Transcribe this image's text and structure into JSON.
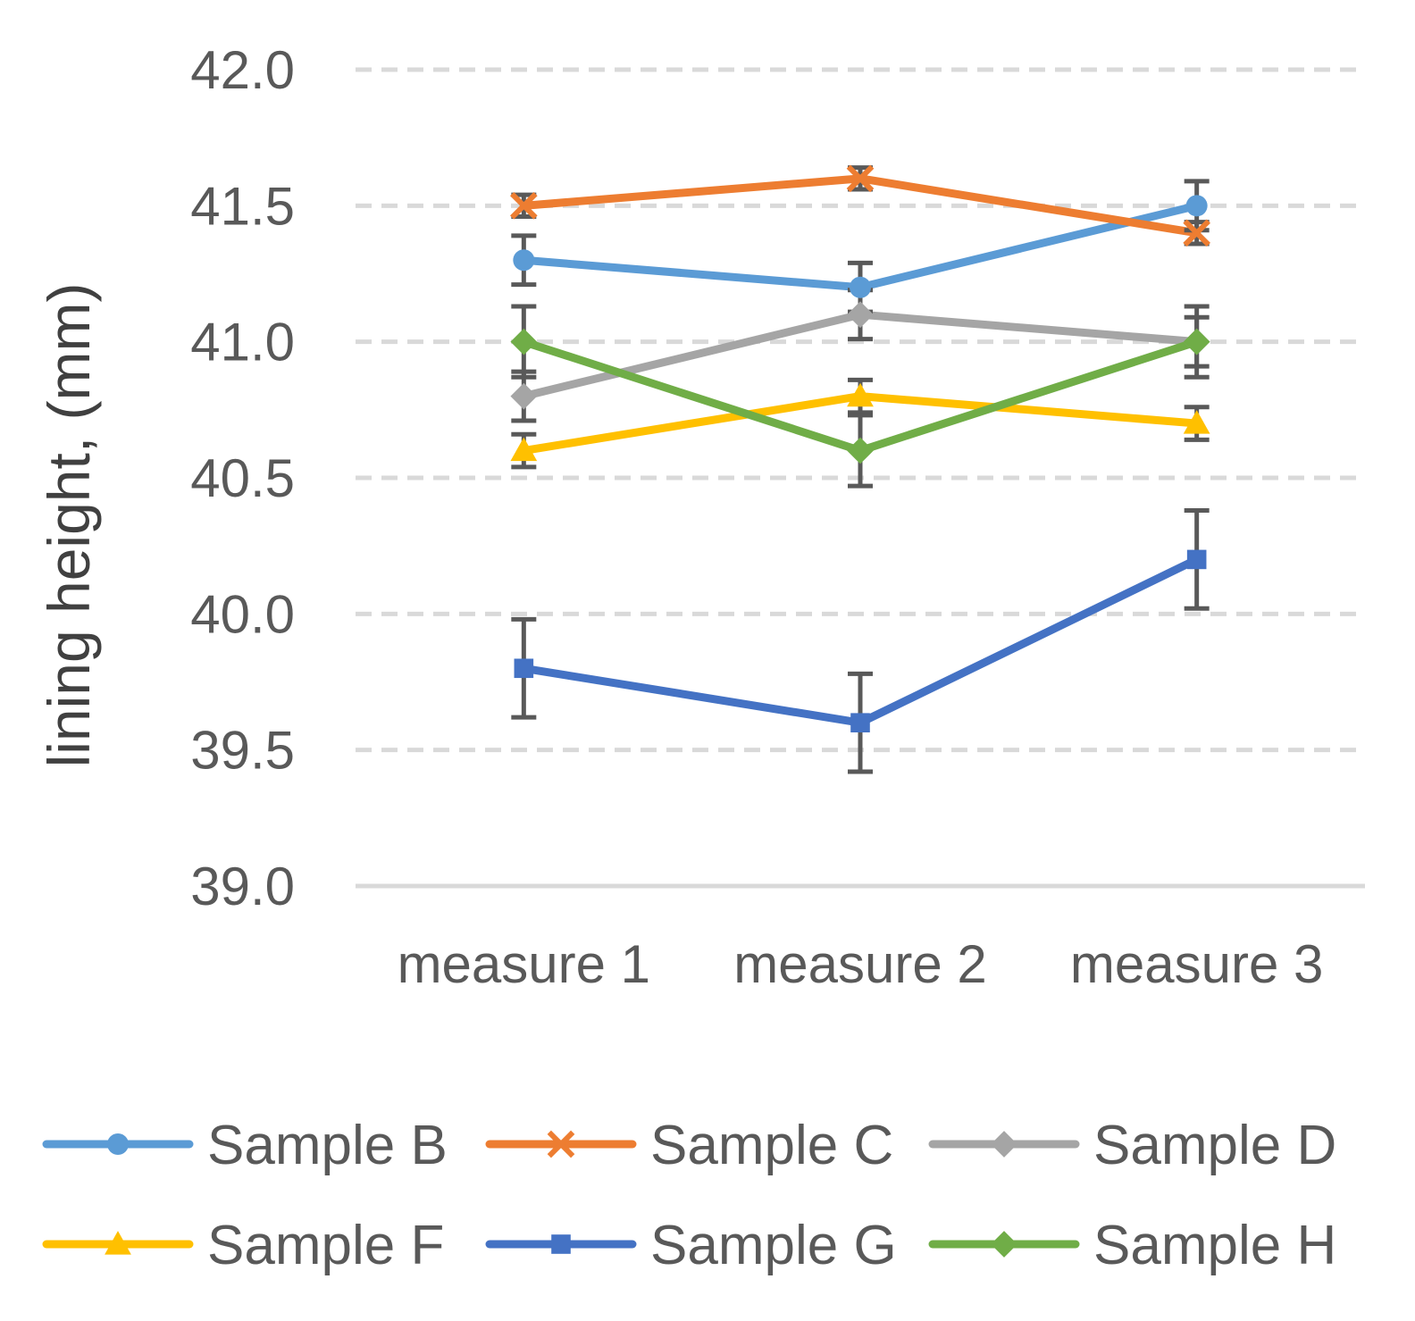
{
  "chart_data": {
    "type": "line",
    "title": "",
    "xlabel": "",
    "ylabel": "lining height, (mm)",
    "ylim": [
      39.0,
      42.0
    ],
    "yticks": [
      "42.0",
      "41.5",
      "41.0",
      "40.5",
      "40.0",
      "39.5",
      "39.0"
    ],
    "ytick_values": [
      42.0,
      41.5,
      41.0,
      40.5,
      40.0,
      39.5,
      39.0
    ],
    "grid": "horizontal-dashed",
    "legend_position": "bottom",
    "categories": [
      "measure 1",
      "measure 2",
      "measure 3"
    ],
    "series": [
      {
        "name": "Sample B",
        "color": "#5B9BD5",
        "marker": "circle",
        "values": [
          41.3,
          41.2,
          41.5
        ],
        "errors": [
          0.09,
          0.09,
          0.09
        ]
      },
      {
        "name": "Sample C",
        "color": "#ED7D31",
        "marker": "x",
        "values": [
          41.5,
          41.6,
          41.4
        ],
        "errors": [
          0.04,
          0.04,
          0.04
        ]
      },
      {
        "name": "Sample D",
        "color": "#A5A5A5",
        "marker": "diamond",
        "values": [
          40.8,
          41.1,
          41.0
        ],
        "errors": [
          0.09,
          0.09,
          0.09
        ]
      },
      {
        "name": "Sample F",
        "color": "#FFC000",
        "marker": "triangle",
        "values": [
          40.6,
          40.8,
          40.7
        ],
        "errors": [
          0.06,
          0.06,
          0.06
        ]
      },
      {
        "name": "Sample G",
        "color": "#4472C4",
        "marker": "square",
        "values": [
          39.8,
          39.6,
          40.2
        ],
        "errors": [
          0.18,
          0.18,
          0.18
        ]
      },
      {
        "name": "Sample H",
        "color": "#70AD47",
        "marker": "diamond",
        "values": [
          41.0,
          40.6,
          41.0
        ],
        "errors": [
          0.13,
          0.13,
          0.13
        ]
      }
    ]
  }
}
